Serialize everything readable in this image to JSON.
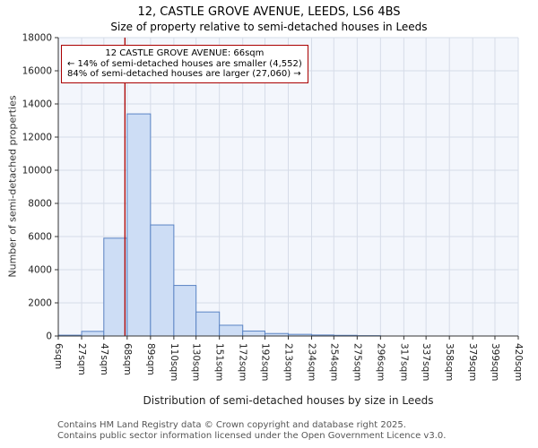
{
  "chart_data": {
    "type": "bar",
    "title": "12, CASTLE GROVE AVENUE, LEEDS, LS6 4BS",
    "subtitle": "Size of property relative to semi-detached houses in Leeds",
    "xlabel": "Distribution of semi-detached houses by size in Leeds",
    "ylabel": "Number of semi-detached properties",
    "ylim": [
      0,
      18000
    ],
    "y_ticks": [
      0,
      2000,
      4000,
      6000,
      8000,
      10000,
      12000,
      14000,
      16000,
      18000
    ],
    "bin_edges_sqm": [
      6,
      27,
      47,
      68,
      89,
      110,
      130,
      151,
      172,
      192,
      213,
      234,
      254,
      275,
      296,
      317,
      337,
      358,
      379,
      399,
      420
    ],
    "x_tick_labels": [
      "6sqm",
      "27sqm",
      "47sqm",
      "68sqm",
      "89sqm",
      "110sqm",
      "130sqm",
      "151sqm",
      "172sqm",
      "192sqm",
      "213sqm",
      "234sqm",
      "254sqm",
      "275sqm",
      "296sqm",
      "317sqm",
      "337sqm",
      "358sqm",
      "379sqm",
      "399sqm",
      "420sqm"
    ],
    "values": [
      50,
      280,
      5900,
      13400,
      6700,
      3050,
      1450,
      650,
      300,
      150,
      100,
      60,
      40,
      20,
      0,
      0,
      0,
      0,
      0,
      0
    ],
    "marker": {
      "value_sqm": 66,
      "pct_smaller": 14,
      "count_smaller": "4,552",
      "pct_larger": 84,
      "count_larger": "27,060"
    },
    "annotation": {
      "line1": "12 CASTLE GROVE AVENUE: 66sqm",
      "line2": "← 14% of semi-detached houses are smaller (4,552)",
      "line3": "84% of semi-detached houses are larger (27,060) →"
    },
    "grid": true,
    "legend": "none",
    "colors": {
      "bar_fill": "#cdddf5",
      "bar_stroke": "#5b84c4",
      "marker_line": "#aa0000",
      "grid": "#d6dce8",
      "plot_bg": "#f3f6fc",
      "axis": "#333333"
    }
  },
  "footer": {
    "line1": "Contains HM Land Registry data © Crown copyright and database right 2025.",
    "line2": "Contains public sector information licensed under the Open Government Licence v3.0."
  }
}
